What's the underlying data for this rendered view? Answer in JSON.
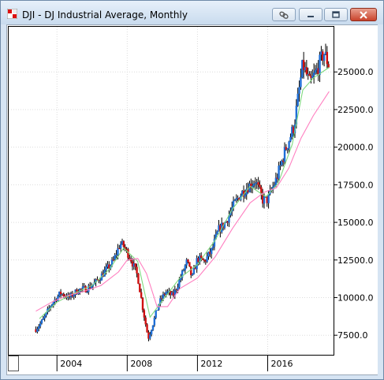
{
  "window": {
    "title": "DJI - DJ Industrial Average, Monthly",
    "buttons": {
      "link_icon": "link-icon",
      "minimize_icon": "minimize-icon",
      "maximize_icon": "maximize-icon",
      "close_icon": "close-icon"
    }
  },
  "chart_data": {
    "type": "candlestick",
    "title": "DJI - DJ Industrial Average, Monthly",
    "ytick_labels": [
      "7500.0",
      "10000.0",
      "12500.0",
      "15000.0",
      "17500.0",
      "20000.0",
      "22500.0",
      "25000.0"
    ],
    "yticks": [
      7500,
      10000,
      12500,
      15000,
      17500,
      20000,
      22500,
      25000
    ],
    "ylim": [
      6200,
      28000
    ],
    "xtick_labels": [
      "2004",
      "2008",
      "2012",
      "2016"
    ],
    "xticks": [
      2004,
      2008,
      2012,
      2016
    ],
    "xlim": [
      2001.25,
      2019.75
    ],
    "grid": true,
    "colors": {
      "up": "#1e6fd8",
      "down": "#d01010",
      "ma_short": "#7fd97f",
      "ma_long": "#ff7fc0"
    },
    "series": [
      {
        "kind": "price",
        "x": [
          2002.8,
          2003.2,
          2003.7,
          2004.2,
          2004.7,
          2005.2,
          2005.7,
          2006.2,
          2006.7,
          2007.2,
          2007.6,
          2007.8,
          2008.2,
          2008.6,
          2008.9,
          2009.2,
          2009.5,
          2009.8,
          2010.2,
          2010.6,
          2011.0,
          2011.4,
          2011.7,
          2012.0,
          2012.4,
          2012.8,
          2013.2,
          2013.6,
          2014.0,
          2014.4,
          2014.8,
          2015.3,
          2015.7,
          2016.0,
          2016.5,
          2017.0,
          2017.5,
          2018.0,
          2018.4,
          2018.8,
          2019.2,
          2019.5
        ],
        "values": [
          7900,
          8500,
          9600,
          10300,
          10000,
          10500,
          10600,
          11000,
          11700,
          12400,
          13600,
          13400,
          12600,
          11400,
          9200,
          7300,
          8400,
          9600,
          10400,
          10100,
          11200,
          12400,
          11300,
          12600,
          12400,
          13100,
          14500,
          15000,
          16000,
          16800,
          17300,
          17800,
          16500,
          16500,
          17900,
          19800,
          21400,
          25500,
          24200,
          25100,
          26300,
          25400
        ]
      },
      {
        "kind": "ma_short",
        "x": [
          2003.0,
          2004.0,
          2005.0,
          2006.0,
          2007.0,
          2007.8,
          2008.6,
          2009.3,
          2010.0,
          2011.0,
          2012.0,
          2013.0,
          2014.0,
          2015.0,
          2015.9,
          2016.6,
          2017.4,
          2018.0,
          2018.6,
          2019.5
        ],
        "values": [
          8600,
          9700,
          10300,
          10800,
          11900,
          13300,
          12400,
          8700,
          9800,
          11300,
          12200,
          13800,
          15900,
          17400,
          16700,
          17600,
          20200,
          23800,
          24600,
          25300
        ]
      },
      {
        "kind": "ma_long",
        "x": [
          2002.8,
          2003.7,
          2004.5,
          2005.5,
          2006.5,
          2007.5,
          2008.0,
          2008.6,
          2009.1,
          2009.7,
          2010.3,
          2011.0,
          2012.0,
          2013.0,
          2014.0,
          2015.0,
          2015.8,
          2016.5,
          2017.2,
          2017.9,
          2018.6,
          2019.5
        ],
        "values": [
          9100,
          9700,
          10100,
          10400,
          10800,
          11700,
          12500,
          12600,
          11600,
          9400,
          9400,
          10600,
          11300,
          12700,
          14600,
          16300,
          17000,
          17300,
          18600,
          20600,
          22100,
          23700
        ]
      }
    ]
  }
}
